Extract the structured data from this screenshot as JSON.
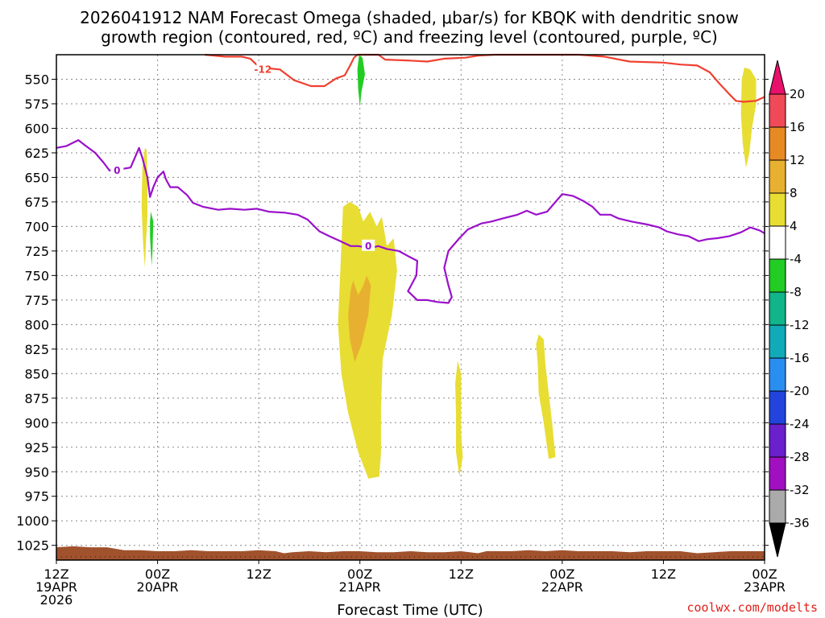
{
  "chart_data": {
    "type": "area",
    "title_lines": [
      "2026041912 NAM Forecast Omega (shaded, μbar/s) for KBQK with dendritic snow",
      "growth region (contoured, red, ºC) and freezing level (contoured, purple, ºC)"
    ],
    "xlabel": "Forecast Time (UTC)",
    "credit": "coolwx.com/modelts",
    "x_range_hours": [
      0,
      84
    ],
    "x_ticks": [
      {
        "hour": 0,
        "lines": [
          "12Z",
          "19APR",
          "2026"
        ]
      },
      {
        "hour": 12,
        "lines": [
          "00Z",
          "20APR"
        ]
      },
      {
        "hour": 24,
        "lines": [
          "12Z"
        ]
      },
      {
        "hour": 36,
        "lines": [
          "00Z",
          "21APR"
        ]
      },
      {
        "hour": 48,
        "lines": [
          "12Z"
        ]
      },
      {
        "hour": 60,
        "lines": [
          "00Z",
          "22APR"
        ]
      },
      {
        "hour": 72,
        "lines": [
          "12Z"
        ]
      },
      {
        "hour": 84,
        "lines": [
          "00Z",
          "23APR"
        ]
      }
    ],
    "y_axis": {
      "label": "",
      "top_hpa": 525,
      "bottom_hpa": 1040,
      "reversed": true,
      "ticks": [
        "550",
        "575",
        "600",
        "625",
        "650",
        "675",
        "700",
        "725",
        "750",
        "775",
        "800",
        "825",
        "850",
        "875",
        "900",
        "925",
        "950",
        "975",
        "1000",
        "1025"
      ]
    },
    "grid": true,
    "colorbar": {
      "labels": [
        "20",
        "16",
        "12",
        "8",
        "4",
        "-4",
        "-8",
        "-12",
        "-16",
        "-20",
        "-24",
        "-28",
        "-32",
        "-36"
      ],
      "colors": [
        "#f04a58",
        "#e88a24",
        "#e8b030",
        "#e8dd33",
        "#ffffff",
        "#22cc22",
        "#12b48a",
        "#12aab8",
        "#2a8ef0",
        "#2244dd",
        "#6a20cc",
        "#a010c0",
        "#aaaaaa"
      ],
      "top_arrow_color": "#e8106a",
      "bottom_arrow_color": "#000000"
    },
    "omega_shaded": [
      {
        "level": "4 to 8",
        "color": "#e8dd33",
        "points": [
          [
            34.8,
            675
          ],
          [
            35.8,
            680
          ],
          [
            36.4,
            695
          ],
          [
            37.2,
            685
          ],
          [
            38.0,
            700
          ],
          [
            38.6,
            690
          ],
          [
            39.2,
            720
          ],
          [
            40.0,
            712
          ],
          [
            40.4,
            745
          ],
          [
            39.8,
            790
          ],
          [
            38.7,
            835
          ],
          [
            38.5,
            885
          ],
          [
            38.5,
            930
          ],
          [
            38.3,
            955
          ],
          [
            37.0,
            957
          ],
          [
            35.8,
            930
          ],
          [
            34.6,
            890
          ],
          [
            33.8,
            850
          ],
          [
            33.4,
            800
          ],
          [
            33.6,
            760
          ],
          [
            33.8,
            720
          ],
          [
            34.0,
            680
          ]
        ]
      },
      {
        "level": "8 to 12",
        "color": "#e8b030",
        "points": [
          [
            35.2,
            755
          ],
          [
            35.8,
            770
          ],
          [
            36.4,
            760
          ],
          [
            36.8,
            750
          ],
          [
            37.3,
            760
          ],
          [
            37.0,
            790
          ],
          [
            36.2,
            820
          ],
          [
            35.4,
            838
          ],
          [
            34.8,
            815
          ],
          [
            34.6,
            790
          ],
          [
            34.9,
            765
          ]
        ]
      },
      {
        "level": "4 to 8",
        "color": "#e8dd33",
        "points": [
          [
            10.5,
            620
          ],
          [
            10.7,
            622
          ],
          [
            10.8,
            650
          ],
          [
            10.8,
            690
          ],
          [
            10.6,
            720
          ],
          [
            10.5,
            742
          ],
          [
            10.3,
            720
          ],
          [
            10.1,
            680
          ],
          [
            10.2,
            640
          ]
        ]
      },
      {
        "level": "4 to 8",
        "color": "#e8dd33",
        "points": [
          [
            47.6,
            837
          ],
          [
            48.0,
            850
          ],
          [
            48.0,
            880
          ],
          [
            48.0,
            910
          ],
          [
            48.2,
            935
          ],
          [
            47.8,
            955
          ],
          [
            47.4,
            930
          ],
          [
            47.4,
            890
          ],
          [
            47.3,
            860
          ]
        ]
      },
      {
        "level": "4 to 8",
        "color": "#e8dd33",
        "points": [
          [
            57.2,
            810
          ],
          [
            57.8,
            815
          ],
          [
            58.0,
            840
          ],
          [
            58.4,
            870
          ],
          [
            58.8,
            900
          ],
          [
            59.2,
            935
          ],
          [
            58.4,
            937
          ],
          [
            57.8,
            900
          ],
          [
            57.2,
            870
          ],
          [
            57.1,
            840
          ],
          [
            56.9,
            820
          ]
        ]
      },
      {
        "level": "4 to 8",
        "color": "#e8dd33",
        "points": [
          [
            81.6,
            538
          ],
          [
            82.3,
            540
          ],
          [
            83.0,
            550
          ],
          [
            83.0,
            575
          ],
          [
            82.5,
            600
          ],
          [
            82.2,
            625
          ],
          [
            81.8,
            640
          ],
          [
            81.4,
            615
          ],
          [
            81.2,
            585
          ],
          [
            81.3,
            550
          ]
        ]
      },
      {
        "level": "-8 to -4",
        "color": "#22cc22",
        "points": [
          [
            35.9,
            525
          ],
          [
            36.3,
            528
          ],
          [
            36.6,
            545
          ],
          [
            36.2,
            562
          ],
          [
            36.0,
            578
          ],
          [
            35.8,
            560
          ],
          [
            35.7,
            540
          ]
        ]
      },
      {
        "level": "-8 to -4",
        "color": "#22cc22",
        "points": [
          [
            11.2,
            685
          ],
          [
            11.5,
            695
          ],
          [
            11.4,
            725
          ],
          [
            11.3,
            740
          ],
          [
            11.1,
            710
          ],
          [
            11.1,
            695
          ]
        ]
      }
    ],
    "dgz_minus12_line": {
      "color": "#f04030",
      "label": "-12",
      "label_at": [
        24.5,
        540
      ],
      "points": [
        [
          17.6,
          525
        ],
        [
          20,
          527
        ],
        [
          22,
          527
        ],
        [
          23,
          529
        ],
        [
          24.1,
          538
        ],
        [
          26.5,
          540
        ],
        [
          28.2,
          551
        ],
        [
          30.2,
          557
        ],
        [
          31.8,
          557
        ],
        [
          33.2,
          549
        ],
        [
          34.2,
          546
        ],
        [
          34.9,
          535
        ],
        [
          35.3,
          528
        ],
        [
          35.7,
          525
        ],
        [
          38.2,
          525
        ],
        [
          39,
          530
        ],
        [
          42,
          531
        ],
        [
          44,
          532
        ],
        [
          46,
          529
        ],
        [
          48.5,
          528
        ],
        [
          50,
          526
        ],
        [
          52,
          525
        ],
        [
          56,
          525
        ],
        [
          62,
          525
        ],
        [
          65,
          527
        ],
        [
          68,
          532
        ],
        [
          72,
          533
        ],
        [
          74,
          535
        ],
        [
          76,
          536
        ],
        [
          77.5,
          543
        ],
        [
          78.5,
          553
        ],
        [
          79.8,
          565
        ],
        [
          80.6,
          572
        ],
        [
          81.5,
          573
        ],
        [
          83,
          572
        ],
        [
          84,
          568
        ]
      ]
    },
    "freezing_level_line": {
      "color": "#9a10cc",
      "label": "0",
      "label_shown_at": [
        [
          7.2,
          643
        ],
        [
          37.0,
          720
        ]
      ],
      "points": [
        [
          0,
          620
        ],
        [
          1.2,
          618
        ],
        [
          2.6,
          612
        ],
        [
          3.5,
          618
        ],
        [
          4.6,
          625
        ],
        [
          5.6,
          635
        ],
        [
          6.3,
          643
        ],
        [
          7.4,
          642
        ],
        [
          8.8,
          640
        ],
        [
          9.8,
          620
        ],
        [
          10.2,
          630
        ],
        [
          10.8,
          650
        ],
        [
          11.1,
          670
        ],
        [
          11.5,
          660
        ],
        [
          12.0,
          650
        ],
        [
          12.7,
          644
        ],
        [
          13.0,
          652
        ],
        [
          13.5,
          660
        ],
        [
          14.4,
          660
        ],
        [
          15.5,
          668
        ],
        [
          16.2,
          676
        ],
        [
          17.4,
          680
        ],
        [
          19.2,
          683
        ],
        [
          20.6,
          682
        ],
        [
          22.3,
          683
        ],
        [
          23.8,
          682
        ],
        [
          25.2,
          685
        ],
        [
          27.1,
          686
        ],
        [
          28.6,
          688
        ],
        [
          29.8,
          693
        ],
        [
          31.2,
          705
        ],
        [
          32.4,
          710
        ],
        [
          33.7,
          715
        ],
        [
          34.9,
          720
        ],
        [
          35.8,
          720
        ],
        [
          37.2,
          722
        ],
        [
          38.2,
          720
        ],
        [
          39.2,
          723
        ],
        [
          40.6,
          725
        ],
        [
          42.1,
          732
        ],
        [
          42.8,
          735
        ],
        [
          42.7,
          750
        ],
        [
          41.7,
          766
        ],
        [
          42.8,
          775
        ],
        [
          44.0,
          775
        ],
        [
          45.2,
          777
        ],
        [
          46.5,
          778
        ],
        [
          46.9,
          772
        ],
        [
          46.5,
          760
        ],
        [
          46.0,
          742
        ],
        [
          46.5,
          725
        ],
        [
          47.8,
          712
        ],
        [
          48.8,
          703
        ],
        [
          50.4,
          697
        ],
        [
          51.6,
          695
        ],
        [
          52.9,
          692
        ],
        [
          54.7,
          688
        ],
        [
          55.8,
          684
        ],
        [
          56.9,
          688
        ],
        [
          58.2,
          685
        ],
        [
          59.4,
          673
        ],
        [
          60.0,
          667
        ],
        [
          61.3,
          669
        ],
        [
          62.5,
          674
        ],
        [
          63.6,
          680
        ],
        [
          64.5,
          688
        ],
        [
          65.7,
          688
        ],
        [
          66.7,
          692
        ],
        [
          68.2,
          695
        ],
        [
          70.1,
          698
        ],
        [
          71.5,
          701
        ],
        [
          72.4,
          705
        ],
        [
          73.7,
          708
        ],
        [
          75.0,
          710
        ],
        [
          76.2,
          715
        ],
        [
          77.2,
          713
        ],
        [
          78.4,
          712
        ],
        [
          79.8,
          710
        ],
        [
          81.2,
          706
        ],
        [
          82.3,
          701
        ],
        [
          83.4,
          704
        ],
        [
          84.0,
          707
        ]
      ]
    },
    "terrain": {
      "color": "#a0522d",
      "points": [
        [
          0,
          1027
        ],
        [
          2,
          1026
        ],
        [
          4,
          1027
        ],
        [
          6,
          1027
        ],
        [
          8,
          1030
        ],
        [
          10,
          1030
        ],
        [
          12,
          1031
        ],
        [
          14,
          1031
        ],
        [
          16,
          1030
        ],
        [
          18,
          1031
        ],
        [
          20,
          1031
        ],
        [
          22,
          1031
        ],
        [
          24,
          1030
        ],
        [
          26,
          1031
        ],
        [
          27,
          1033
        ],
        [
          28,
          1032
        ],
        [
          30,
          1031
        ],
        [
          32,
          1032
        ],
        [
          34,
          1031
        ],
        [
          36,
          1031
        ],
        [
          38,
          1032
        ],
        [
          40,
          1032
        ],
        [
          42,
          1031
        ],
        [
          44,
          1032
        ],
        [
          46,
          1032
        ],
        [
          48,
          1031
        ],
        [
          50,
          1033
        ],
        [
          51,
          1031
        ],
        [
          54,
          1031
        ],
        [
          56,
          1030
        ],
        [
          58,
          1031
        ],
        [
          60,
          1030
        ],
        [
          62,
          1031
        ],
        [
          64,
          1031
        ],
        [
          66,
          1031
        ],
        [
          68,
          1032
        ],
        [
          70,
          1031
        ],
        [
          72,
          1031
        ],
        [
          74,
          1031
        ],
        [
          76,
          1033
        ],
        [
          78,
          1032
        ],
        [
          80,
          1031
        ],
        [
          82,
          1031
        ],
        [
          84,
          1031
        ]
      ]
    }
  }
}
